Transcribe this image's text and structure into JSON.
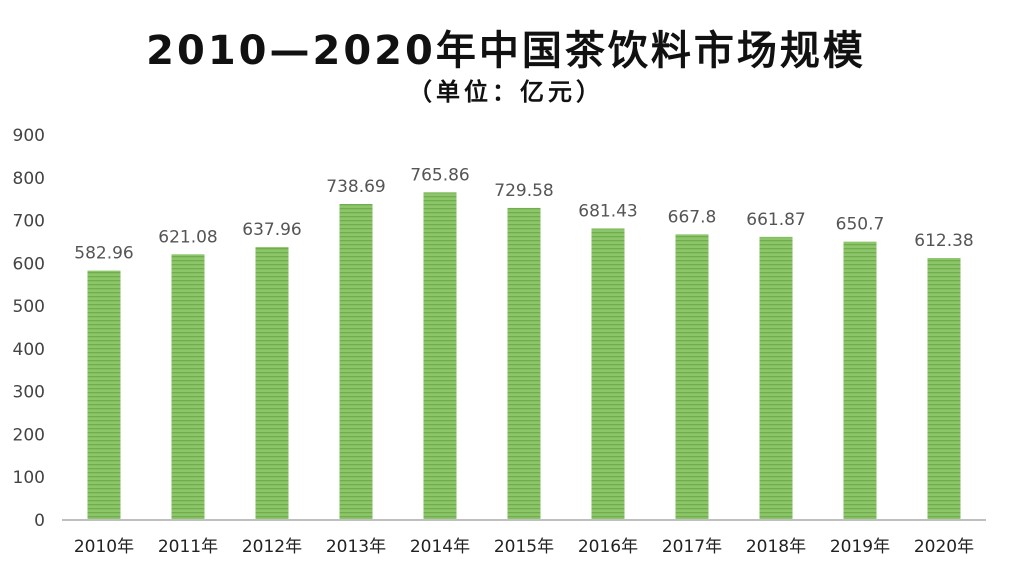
{
  "title": "2010—2020年中国茶饮料市场规模",
  "subtitle": "（单位：亿元）",
  "colors": {
    "bar_fill": "#8cc56a",
    "bar_stripe": "#6fae4c",
    "axis_text": "#444444",
    "label_text": "#555555"
  },
  "chart_data": {
    "type": "bar",
    "title": "2010—2020年中国茶饮料市场规模",
    "subtitle": "（单位：亿元）",
    "categories": [
      "2010年",
      "2011年",
      "2012年",
      "2013年",
      "2014年",
      "2015年",
      "2016年",
      "2017年",
      "2018年",
      "2019年",
      "2020年"
    ],
    "values": [
      582.96,
      621.08,
      637.96,
      738.69,
      765.86,
      729.58,
      681.43,
      667.8,
      661.87,
      650.7,
      612.38
    ],
    "value_labels": [
      "582.96",
      "621.08",
      "637.96",
      "738.69",
      "765.86",
      "729.58",
      "681.43",
      "667.8",
      "661.87",
      "650.7",
      "612.38"
    ],
    "ylim": [
      0,
      900
    ],
    "yticks": [
      0,
      100,
      200,
      300,
      400,
      500,
      600,
      700,
      800,
      900
    ],
    "ytick_labels": [
      "0",
      "100",
      "200",
      "300",
      "400",
      "500",
      "600",
      "700",
      "800",
      "900"
    ],
    "xlabel": "",
    "ylabel": "",
    "grid": false,
    "legend": "none"
  }
}
